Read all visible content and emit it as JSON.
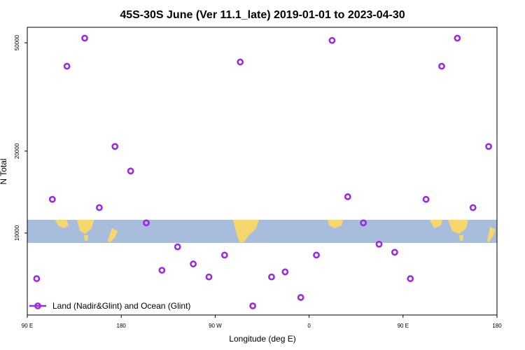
{
  "chart_data": {
    "type": "scatter",
    "title": "45S-30S June (Ver 11.1_late)   2019-01-01 to 2023-04-30",
    "xlabel": "Longitude (deg E)",
    "ylabel": "N Total",
    "xlim": [
      90,
      540
    ],
    "ylog": true,
    "ylim": [
      5000,
      57000
    ],
    "x_ticks": [
      {
        "value": 90,
        "label": "90 E"
      },
      {
        "value": 180,
        "label": "180"
      },
      {
        "value": 270,
        "label": "90 W"
      },
      {
        "value": 360,
        "label": "0"
      },
      {
        "value": 450,
        "label": "90 E"
      },
      {
        "value": 540,
        "label": "180"
      }
    ],
    "y_ticks": [
      {
        "value": 10000,
        "label": "10000"
      },
      {
        "value": 20000,
        "label": "20000"
      },
      {
        "value": 50000,
        "label": "50000"
      }
    ],
    "legend": {
      "label": "Land (Nadir&Glint) and Ocean (Glint)",
      "position": "bottom-left"
    },
    "series": [
      {
        "name": "Land (Nadir&Glint) and Ocean (Glint)",
        "color": "#9b2be2",
        "points": [
          {
            "x": 99,
            "y": 6800
          },
          {
            "x": 114,
            "y": 13300
          },
          {
            "x": 128,
            "y": 41000
          },
          {
            "x": 145,
            "y": 52000
          },
          {
            "x": 159,
            "y": 12400
          },
          {
            "x": 174,
            "y": 20800
          },
          {
            "x": 189,
            "y": 16900
          },
          {
            "x": 204,
            "y": 10900
          },
          {
            "x": 219,
            "y": 7300
          },
          {
            "x": 234,
            "y": 8900
          },
          {
            "x": 249,
            "y": 7700
          },
          {
            "x": 264,
            "y": 6900
          },
          {
            "x": 279,
            "y": 8300
          },
          {
            "x": 294,
            "y": 42500
          },
          {
            "x": 306,
            "y": 5400
          },
          {
            "x": 324,
            "y": 6900
          },
          {
            "x": 337,
            "y": 7200
          },
          {
            "x": 352,
            "y": 5800
          },
          {
            "x": 367,
            "y": 8300
          },
          {
            "x": 382,
            "y": 51000
          },
          {
            "x": 397,
            "y": 13600
          },
          {
            "x": 412,
            "y": 10900
          },
          {
            "x": 427,
            "y": 9100
          },
          {
            "x": 442,
            "y": 8500
          },
          {
            "x": 457,
            "y": 6800
          },
          {
            "x": 472,
            "y": 13300
          },
          {
            "x": 487,
            "y": 41000
          },
          {
            "x": 502,
            "y": 52000
          },
          {
            "x": 517,
            "y": 12400
          },
          {
            "x": 532,
            "y": 20800
          }
        ]
      }
    ],
    "map_strip": {
      "ocean_color": "#a8bcdc",
      "land_color": "#f6d76e",
      "latitude_range": "45S-30S"
    }
  }
}
